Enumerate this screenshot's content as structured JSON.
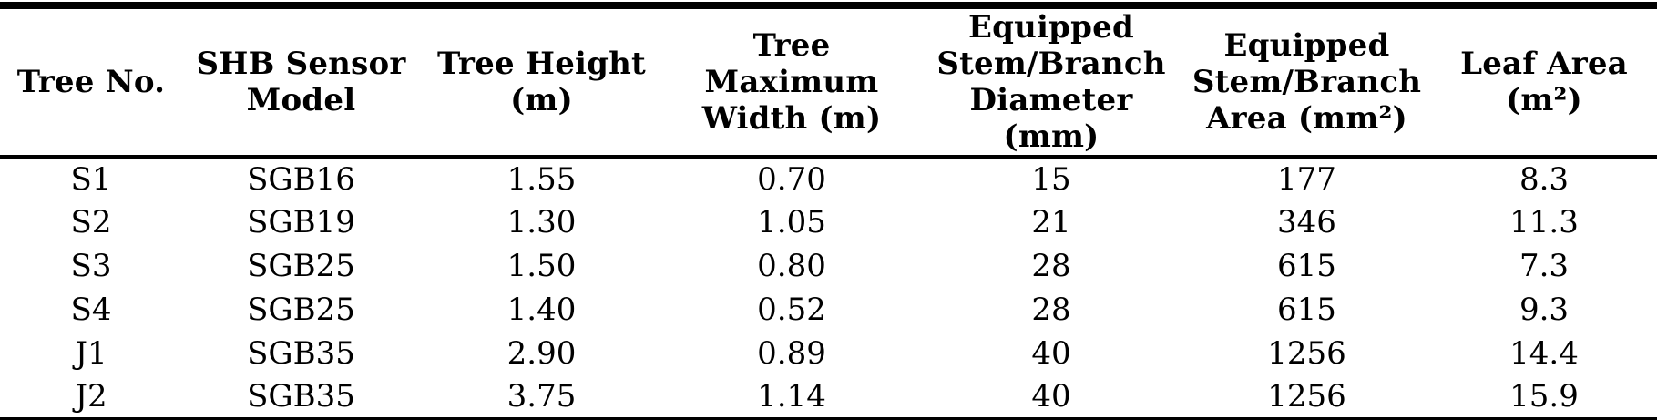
{
  "colors": {
    "text": "#000000",
    "background": "#ffffff",
    "rule": "#000000"
  },
  "table": {
    "headers": [
      "Tree No.",
      "SHB Sensor\nModel",
      "Tree Height\n(m)",
      "Tree\nMaximum\nWidth (m)",
      "Equipped\nStem/Branch\nDiameter (mm)",
      "Equipped\nStem/Branch\nArea (mm²)",
      "Leaf Area\n(m²)"
    ],
    "rows": [
      [
        "S1",
        "SGB16",
        "1.55",
        "0.70",
        "15",
        "177",
        "8.3"
      ],
      [
        "S2",
        "SGB19",
        "1.30",
        "1.05",
        "21",
        "346",
        "11.3"
      ],
      [
        "S3",
        "SGB25",
        "1.50",
        "0.80",
        "28",
        "615",
        "7.3"
      ],
      [
        "S4",
        "SGB25",
        "1.40",
        "0.52",
        "28",
        "615",
        "9.3"
      ],
      [
        "J1",
        "SGB35",
        "2.90",
        "0.89",
        "40",
        "1256",
        "14.4"
      ],
      [
        "J2",
        "SGB35",
        "3.75",
        "1.14",
        "40",
        "1256",
        "15.9"
      ]
    ]
  }
}
